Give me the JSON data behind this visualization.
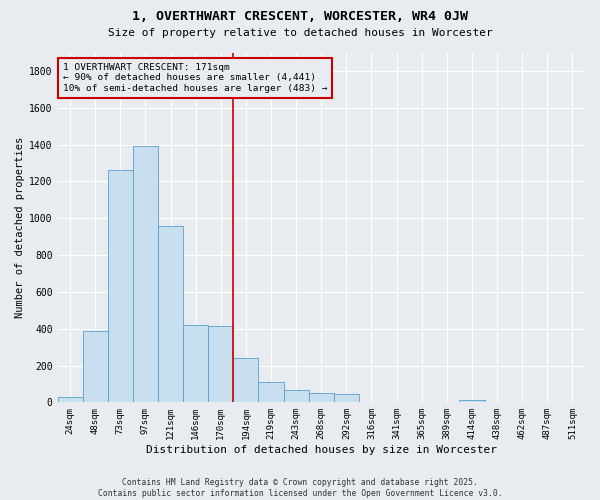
{
  "title": "1, OVERTHWART CRESCENT, WORCESTER, WR4 0JW",
  "subtitle": "Size of property relative to detached houses in Worcester",
  "xlabel": "Distribution of detached houses by size in Worcester",
  "ylabel": "Number of detached properties",
  "bar_color": "#c8dff0",
  "bar_edge_color": "#5a9ec9",
  "background_color": "#e8ecf0",
  "grid_color": "#ffffff",
  "annotation_box_color": "#cc0000",
  "vline_color": "#cc0000",
  "vline_position": 6.5,
  "annotation_text": "1 OVERTHWART CRESCENT: 171sqm\n← 90% of detached houses are smaller (4,441)\n10% of semi-detached houses are larger (483) →",
  "footer_text": "Contains HM Land Registry data © Crown copyright and database right 2025.\nContains public sector information licensed under the Open Government Licence v3.0.",
  "categories": [
    "24sqm",
    "48sqm",
    "73sqm",
    "97sqm",
    "121sqm",
    "146sqm",
    "170sqm",
    "194sqm",
    "219sqm",
    "243sqm",
    "268sqm",
    "292sqm",
    "316sqm",
    "341sqm",
    "365sqm",
    "389sqm",
    "414sqm",
    "438sqm",
    "462sqm",
    "487sqm",
    "511sqm"
  ],
  "bar_heights": [
    30,
    390,
    1260,
    1390,
    960,
    420,
    415,
    240,
    110,
    65,
    50,
    45,
    0,
    0,
    0,
    0,
    15,
    0,
    0,
    0,
    0
  ],
  "ylim": [
    0,
    1900
  ],
  "yticks": [
    0,
    200,
    400,
    600,
    800,
    1000,
    1200,
    1400,
    1600,
    1800
  ],
  "figsize": [
    6.0,
    5.0
  ],
  "dpi": 100
}
